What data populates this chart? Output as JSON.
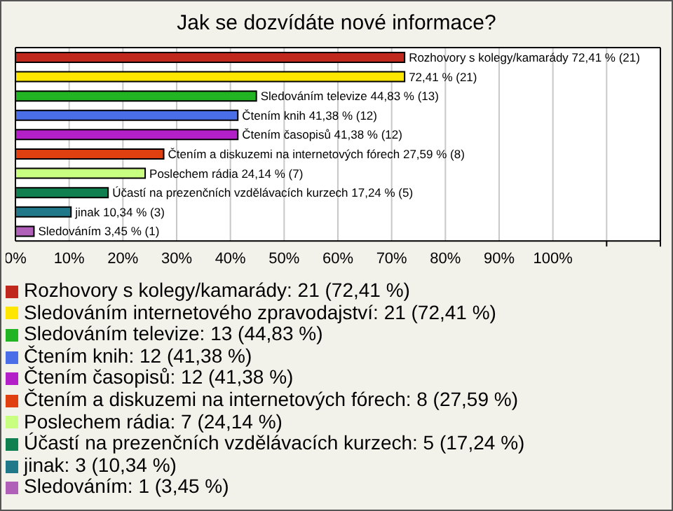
{
  "chart_data": {
    "type": "bar",
    "orientation": "horizontal",
    "stacked": true,
    "title": "Jak se dozvídáte nové informace?",
    "categories": [
      null,
      null,
      null,
      null,
      null,
      null,
      null,
      null,
      null,
      null
    ],
    "series": [
      {
        "name": "Rozhovory s kolegy/kamarády: 21 (72,41 %)",
        "color": "#c0281e",
        "values": [
          72.41,
          null,
          null,
          null,
          null,
          null,
          null,
          null,
          null,
          null
        ],
        "value_labels": [
          "Rozhovory s kolegy/kamarády 72,41 % (21)",
          null,
          null,
          null,
          null,
          null,
          null,
          null,
          null,
          null
        ]
      },
      {
        "name": "Sledováním internetového zpravodajství: 21 (72,41 %)",
        "color": "#ffe600",
        "values": [
          null,
          72.41,
          null,
          null,
          null,
          null,
          null,
          null,
          null,
          null
        ],
        "value_labels": [
          null,
          "72,41 % (21)",
          null,
          null,
          null,
          null,
          null,
          null,
          null,
          null
        ]
      },
      {
        "name": "Sledováním televize: 13 (44,83 %)",
        "color": "#22b422",
        "values": [
          null,
          null,
          44.83,
          null,
          null,
          null,
          null,
          null,
          null,
          null
        ],
        "value_labels": [
          null,
          null,
          "Sledováním televize 44,83 % (13)",
          null,
          null,
          null,
          null,
          null,
          null,
          null
        ]
      },
      {
        "name": "Čtením knih: 12 (41,38 %)",
        "color": "#4a6ee8",
        "values": [
          null,
          null,
          null,
          41.38,
          null,
          null,
          null,
          null,
          null,
          null
        ],
        "value_labels": [
          null,
          null,
          null,
          "Čtením knih 41,38 % (12)",
          null,
          null,
          null,
          null,
          null,
          null
        ]
      },
      {
        "name": "Čtením časopisů: 12 (41,38 %)",
        "color": "#b420c8",
        "values": [
          null,
          null,
          null,
          null,
          41.38,
          null,
          null,
          null,
          null,
          null
        ],
        "value_labels": [
          null,
          null,
          null,
          null,
          "Čtením časopisů 41,38 % (12)",
          null,
          null,
          null,
          null,
          null
        ]
      },
      {
        "name": "Čtením a diskuzemi na internetových fórech: 8 (27,59 %)",
        "color": "#e04010",
        "values": [
          null,
          null,
          null,
          null,
          null,
          27.59,
          null,
          null,
          null,
          null
        ],
        "value_labels": [
          null,
          null,
          null,
          null,
          null,
          "Čtením a diskuzemi na internetových fórech 27,59 % (8)",
          null,
          null,
          null,
          null
        ]
      },
      {
        "name": "Poslechem rádia: 7 (24,14 %)",
        "color": "#c8ff80",
        "values": [
          null,
          null,
          null,
          null,
          null,
          null,
          24.14,
          null,
          null,
          null
        ],
        "value_labels": [
          null,
          null,
          null,
          null,
          null,
          null,
          "Poslechem rádia 24,14 % (7)",
          null,
          null,
          null
        ]
      },
      {
        "name": "Účastí na prezenčních vzdělávacích kurzech: 5 (17,24 %)",
        "color": "#108050",
        "values": [
          null,
          null,
          null,
          null,
          null,
          null,
          null,
          17.24,
          null,
          null
        ],
        "value_labels": [
          null,
          null,
          null,
          null,
          null,
          null,
          null,
          "Účastí na prezenčních vzdělávacích kurzech 17,24 % (5)",
          null,
          null
        ]
      },
      {
        "name": "jinak: 3 (10,34 %)",
        "color": "#207888",
        "values": [
          null,
          null,
          null,
          null,
          null,
          null,
          null,
          null,
          10.34,
          null
        ],
        "value_labels": [
          null,
          null,
          null,
          null,
          null,
          null,
          null,
          null,
          "jinak 10,34 % (3)",
          null
        ]
      },
      {
        "name": "Sledováním: 1 (3,45 %)",
        "color": "#b060b8",
        "values": [
          null,
          null,
          null,
          null,
          null,
          null,
          null,
          null,
          null,
          3.45
        ],
        "value_labels": [
          null,
          null,
          null,
          null,
          null,
          null,
          null,
          null,
          null,
          "Sledováním 3,45 % (1)"
        ]
      }
    ],
    "xlim": [
      0,
      120
    ],
    "xticks": [
      {
        "value": 0,
        "label": "0%"
      },
      {
        "value": 10,
        "label": "10%"
      },
      {
        "value": 20,
        "label": "20%"
      },
      {
        "value": 30,
        "label": "30%"
      },
      {
        "value": 40,
        "label": "40%"
      },
      {
        "value": 50,
        "label": "50%"
      },
      {
        "value": 60,
        "label": "60%"
      },
      {
        "value": 70,
        "label": "70%"
      },
      {
        "value": 80,
        "label": "80%"
      },
      {
        "value": 90,
        "label": "90%"
      },
      {
        "value": 100,
        "label": "100%"
      },
      {
        "value": 110,
        "label": null
      },
      {
        "value": 120,
        "label": null
      }
    ],
    "grid": "x",
    "legend": "bottom",
    "tick_labels": "x"
  }
}
